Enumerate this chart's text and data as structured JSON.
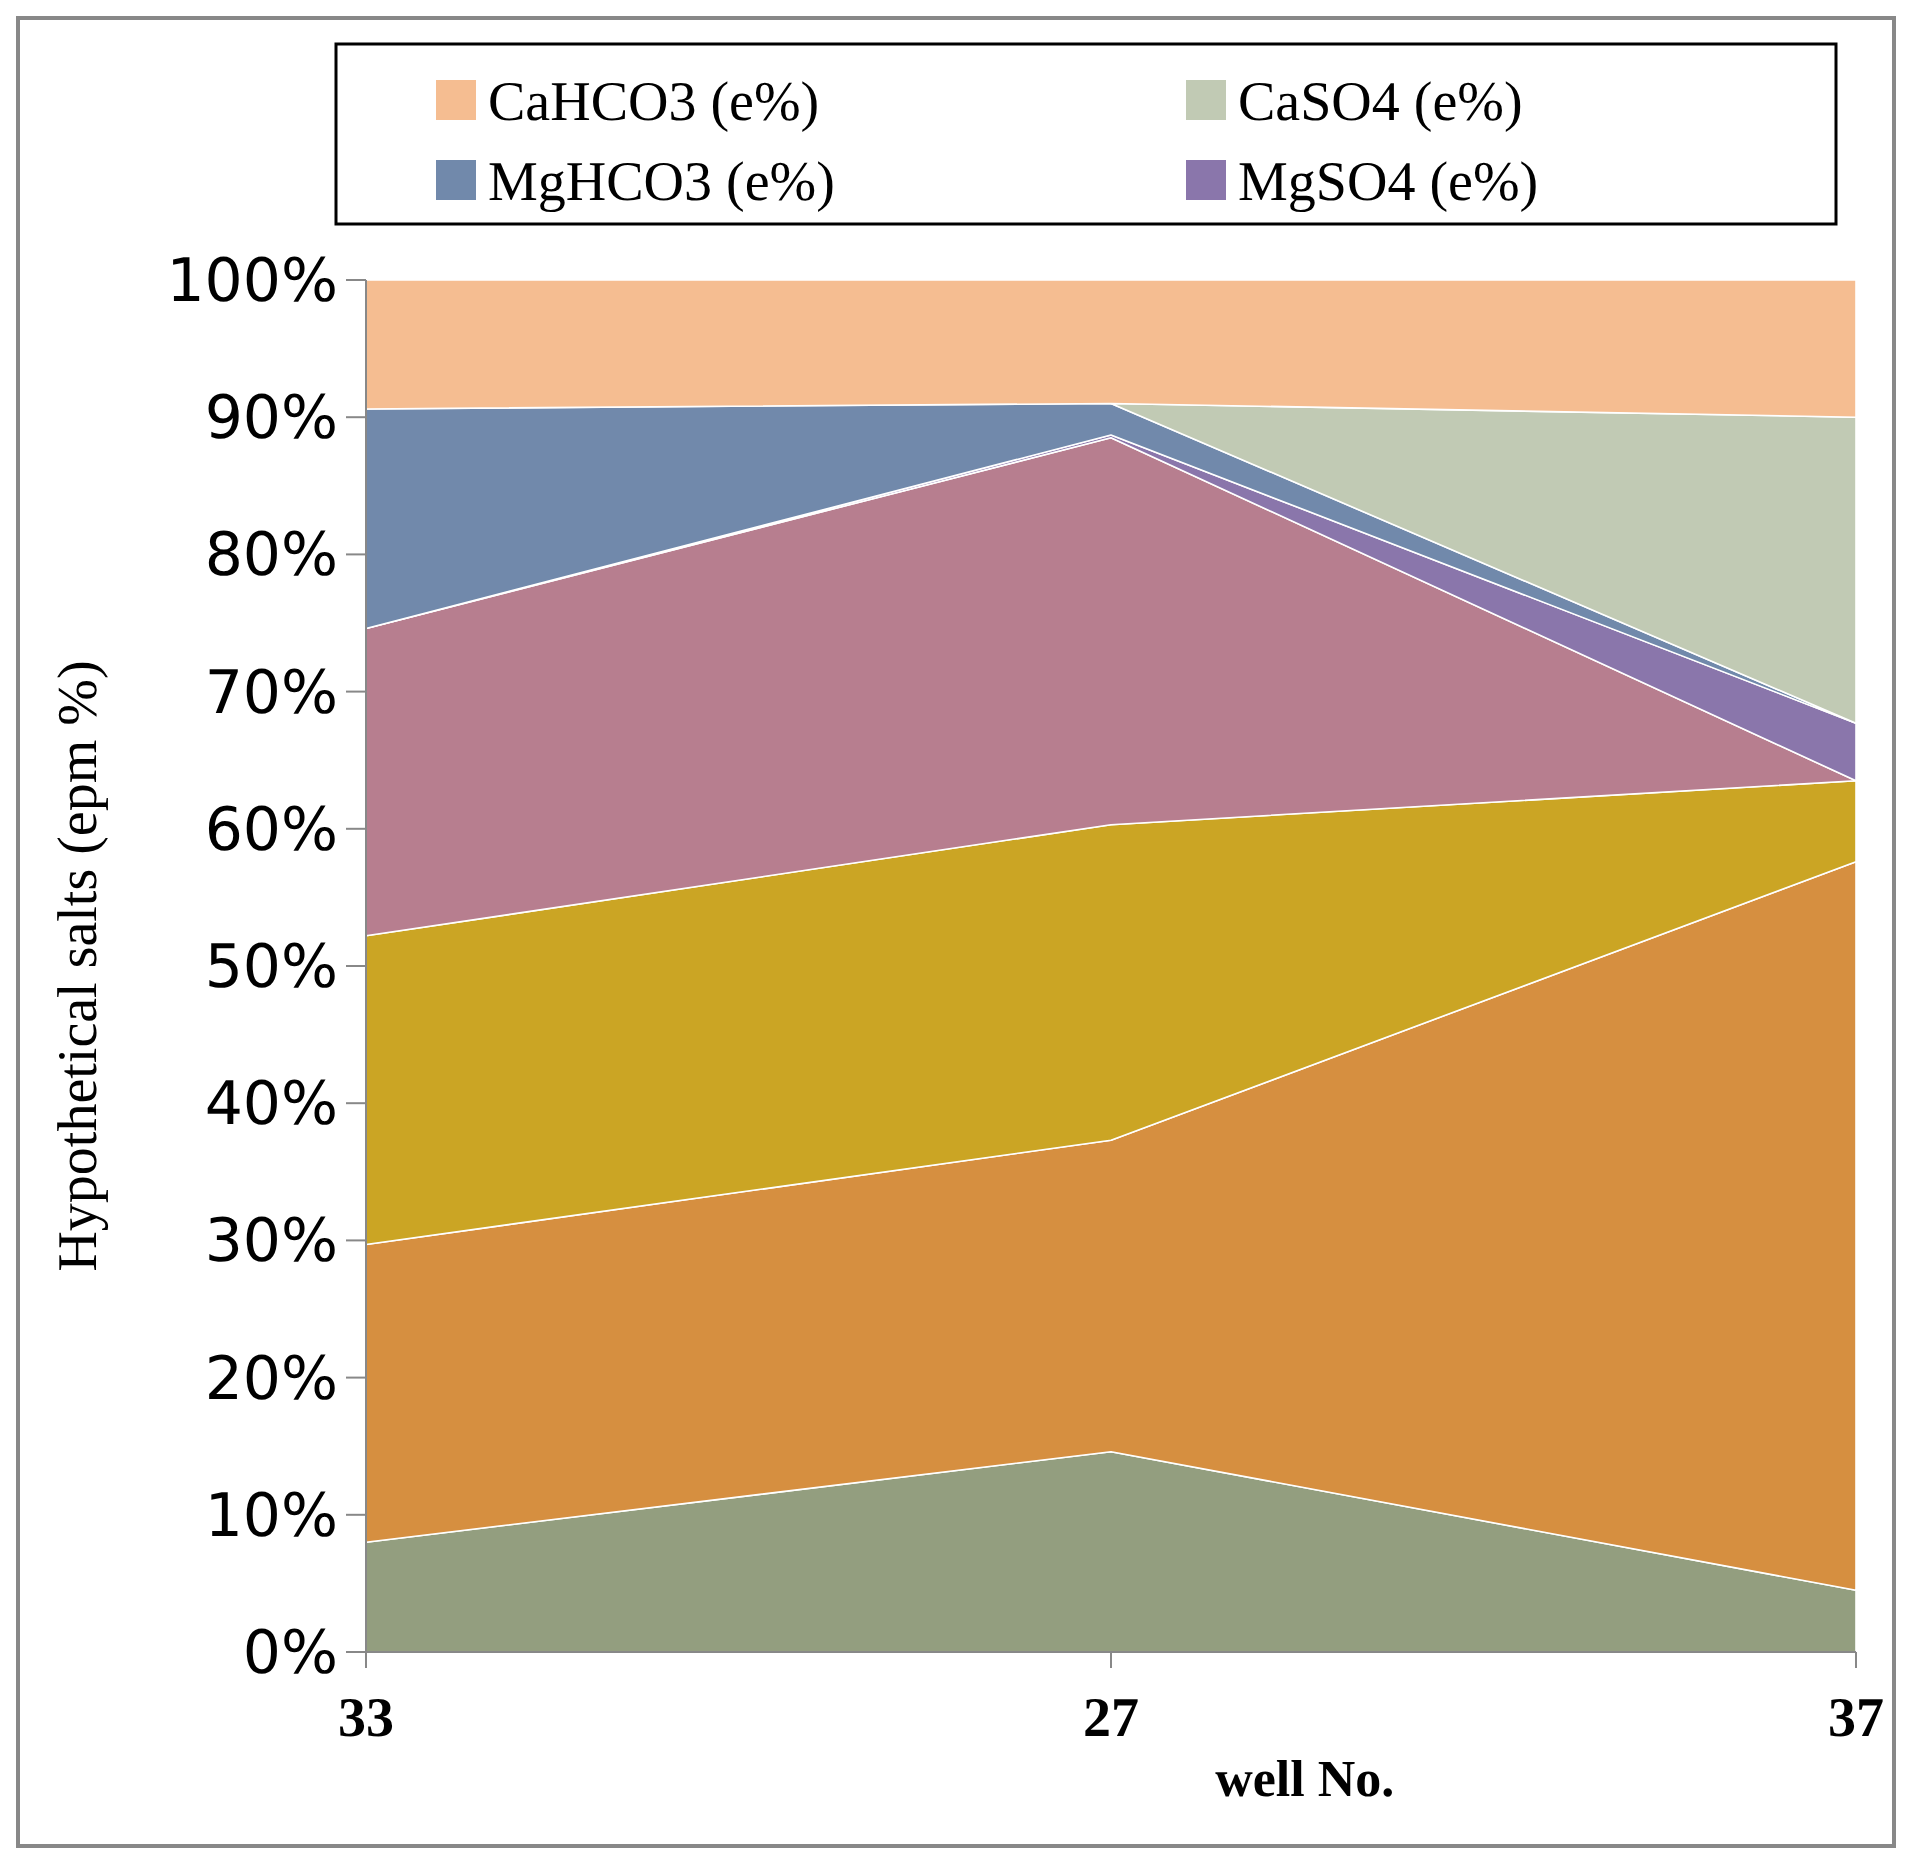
{
  "chart_data": {
    "type": "area",
    "stacked": true,
    "xlabel": "well No.",
    "ylabel": "Hypothetical salts (epm %)",
    "categories": [
      "33",
      "27",
      "37"
    ],
    "ylim": [
      0,
      100
    ],
    "yticks": [
      {
        "value": 0,
        "label": "0%"
      },
      {
        "value": 10,
        "label": "10%"
      },
      {
        "value": 20,
        "label": "20%"
      },
      {
        "value": 30,
        "label": "30%"
      },
      {
        "value": 40,
        "label": "40%"
      },
      {
        "value": 50,
        "label": "50%"
      },
      {
        "value": 60,
        "label": "60%"
      },
      {
        "value": 70,
        "label": "70%"
      },
      {
        "value": 80,
        "label": "80%"
      },
      {
        "value": 90,
        "label": "90%"
      },
      {
        "value": 100,
        "label": "100%"
      }
    ],
    "legend": "top",
    "series": [
      {
        "color": "#939e7f",
        "values": [
          8,
          14.6,
          4.5
        ]
      },
      {
        "color": "#d68f40",
        "values": [
          21.7,
          22.7,
          53.1
        ]
      },
      {
        "color": "#cba524",
        "values": [
          22.5,
          23,
          5.9
        ]
      },
      {
        "color": "#b77e8f",
        "values": [
          22.4,
          28.2,
          0
        ]
      },
      {
        "name": "MgSO4 (e%)",
        "color": "#8a76ab",
        "values": [
          0,
          0.2,
          4.2
        ]
      },
      {
        "name": "MgHCO3 (e%)",
        "color": "#7189ab",
        "values": [
          16,
          2.3,
          0
        ]
      },
      {
        "name": "CaSO4 (e%)",
        "color": "#c1cab4",
        "values": [
          null,
          0,
          22.3
        ]
      },
      {
        "name": "CaHCO3 (e%)",
        "color": "#f5bd91",
        "values": [
          9.4,
          9,
          10
        ]
      }
    ]
  }
}
